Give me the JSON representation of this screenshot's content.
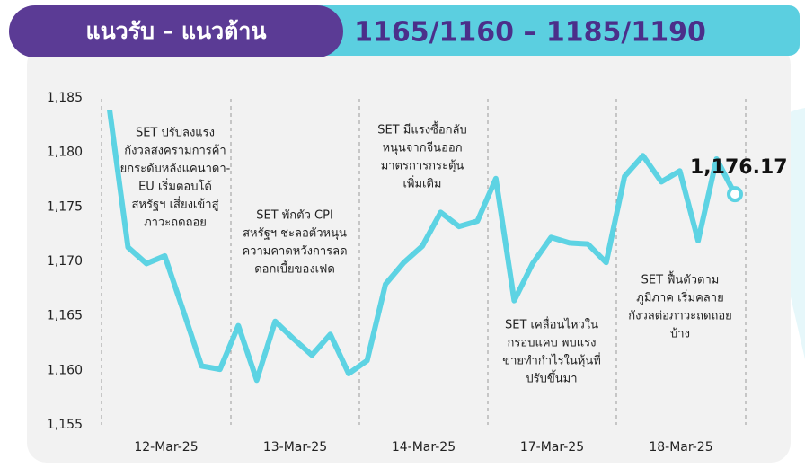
{
  "header": {
    "title": "แนวรับ – แนวต้าน",
    "levels": "1165/1160 – 1185/1190"
  },
  "chart_data": {
    "type": "line",
    "day_labels": [
      "12-Mar-25",
      "13-Mar-25",
      "14-Mar-25",
      "17-Mar-25",
      "18-Mar-25"
    ],
    "values": [
      1183.9,
      1171.3,
      1169.8,
      1170.5,
      1165.5,
      1160.4,
      1160.1,
      1164.1,
      1159.1,
      1164.5,
      1162.9,
      1161.4,
      1163.3,
      1159.7,
      1160.9,
      1167.9,
      1169.9,
      1171.4,
      1174.5,
      1173.2,
      1173.7,
      1177.6,
      1166.4,
      1169.8,
      1172.2,
      1171.7,
      1171.6,
      1169.9,
      1177.8,
      1179.7,
      1177.3,
      1178.3,
      1171.9,
      1179.4,
      1176.17
    ],
    "last_value_label": "1,176.17",
    "color": "#5dd3e3",
    "ylim": [
      1155,
      1185
    ],
    "yticks": [
      {
        "value": 1155,
        "label": "1,155"
      },
      {
        "value": 1160,
        "label": "1,160"
      },
      {
        "value": 1165,
        "label": "1,165"
      },
      {
        "value": 1170,
        "label": "1,170"
      },
      {
        "value": 1175,
        "label": "1,175"
      },
      {
        "value": 1180,
        "label": "1,180"
      },
      {
        "value": 1185,
        "label": "1,185"
      }
    ],
    "annotations": [
      [
        "SET ปรับลงแรง",
        "กังวลสงครามการค้า",
        "ยกระดับหลังแคนาดา-",
        "EU เริ่มตอบโต้",
        "สหรัฐฯ เสี่ยงเข้าสู่",
        "ภาวะถดถอย"
      ],
      [
        "SET พักตัว CPI",
        "สหรัฐฯ ชะลอตัวหนุน",
        "ความคาดหวังการลด",
        "ดอกเบี้ยของเฟด"
      ],
      [
        "SET มีแรงซื้อกลับ",
        "หนุนจากจีนออก",
        "มาตรการกระตุ้น",
        "เพิ่มเติม"
      ],
      [
        "SET เคลื่อนไหวใน",
        "กรอบแคบ พบแรง",
        "ขายทำกำไรในหุ้นที่",
        "ปรับขึ้นมา"
      ],
      [
        "SET ฟื้นตัวตาม",
        "ภูมิภาค เริ่มคลาย",
        "กังวลต่อภาวะถดถอย",
        "บ้าง"
      ]
    ]
  }
}
